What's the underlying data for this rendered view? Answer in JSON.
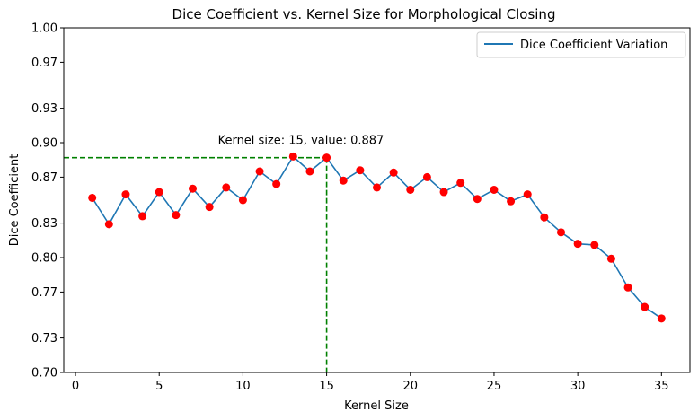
{
  "chart_data": {
    "type": "line",
    "title": "Dice Coefficient vs. Kernel Size for Morphological Closing",
    "xlabel": "Kernel Size",
    "ylabel": "Dice Coefficient",
    "xlim": [
      -0.7,
      36.7
    ],
    "ylim": [
      0.7,
      1.0
    ],
    "xticks": [
      0,
      5,
      10,
      15,
      20,
      25,
      30,
      35
    ],
    "xtick_labels": [
      "0",
      "5",
      "10",
      "15",
      "20",
      "25",
      "30",
      "35"
    ],
    "yticks": [
      0.7,
      0.73,
      0.77,
      0.8,
      0.83,
      0.87,
      0.9,
      0.93,
      0.97,
      1.0
    ],
    "ytick_labels": [
      "0.70",
      "0.73",
      "0.77",
      "0.80",
      "0.83",
      "0.87",
      "0.90",
      "0.93",
      "0.97",
      "1.00"
    ],
    "grid": false,
    "legend_position": "top-right",
    "series": [
      {
        "name": "Dice Coefficient Variation",
        "line_color": "#1f77b4",
        "marker_color": "#ff0000",
        "x": [
          1,
          2,
          3,
          4,
          5,
          6,
          7,
          8,
          9,
          10,
          11,
          12,
          13,
          14,
          15,
          16,
          17,
          18,
          19,
          20,
          21,
          22,
          23,
          24,
          25,
          26,
          27,
          28,
          29,
          30,
          31,
          32,
          33,
          34,
          35
        ],
        "y": [
          0.852,
          0.829,
          0.855,
          0.836,
          0.857,
          0.837,
          0.86,
          0.844,
          0.861,
          0.85,
          0.875,
          0.864,
          0.888,
          0.875,
          0.887,
          0.867,
          0.876,
          0.861,
          0.874,
          0.859,
          0.87,
          0.857,
          0.865,
          0.851,
          0.859,
          0.849,
          0.855,
          0.835,
          0.822,
          0.812,
          0.811,
          0.799,
          0.774,
          0.757,
          0.747
        ]
      }
    ],
    "annotation": {
      "text": "Kernel size: 15, value: 0.887",
      "x": 15,
      "y": 0.887,
      "line_color": "#008000"
    }
  }
}
